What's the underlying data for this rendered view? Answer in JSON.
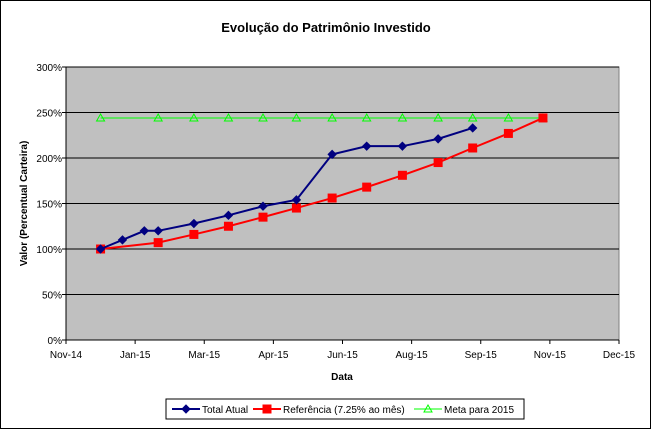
{
  "chart_data": {
    "type": "line",
    "title": "Evolução do Patrimônio Investido",
    "xlabel": "Data",
    "ylabel": "Valor (Percentual Carteira)",
    "ylim": [
      0,
      300
    ],
    "y_ticks": [
      "0%",
      "50%",
      "100%",
      "150%",
      "200%",
      "250%",
      "300%"
    ],
    "x_ticks": [
      "Nov-14",
      "Jan-15",
      "Mar-15",
      "Apr-15",
      "Jun-15",
      "Aug-15",
      "Sep-15",
      "Nov-15",
      "Dec-15"
    ],
    "x_tick_values": [
      "2014-11-01",
      "2014-12-31",
      "2015-03-01",
      "2015-04-30",
      "2015-06-29",
      "2015-08-28",
      "2015-10-27",
      "2015-12-26",
      "2016-02-24"
    ],
    "xlim": [
      "2014-11-01",
      "2016-02-24"
    ],
    "grid": "horizontal",
    "plot_background": "#c0c0c0",
    "legend_position": "bottom",
    "series": [
      {
        "name": "Total Atual",
        "color": "#000080",
        "marker": "diamond",
        "x": [
          "2014-12-01",
          "2014-12-20",
          "2015-01-08",
          "2015-01-20",
          "2015-02-20",
          "2015-03-22",
          "2015-04-21",
          "2015-05-20",
          "2015-06-20",
          "2015-07-20",
          "2015-08-20",
          "2015-09-20",
          "2015-10-20"
        ],
        "y": [
          100,
          110,
          120,
          120,
          128,
          137,
          147,
          154,
          204,
          213,
          213,
          221,
          233
        ]
      },
      {
        "name": "Referência (7.25% ao mês)",
        "color": "#ff0000",
        "marker": "square",
        "x": [
          "2014-12-01",
          "2015-01-20",
          "2015-02-20",
          "2015-03-22",
          "2015-04-21",
          "2015-05-20",
          "2015-06-20",
          "2015-07-20",
          "2015-08-20",
          "2015-09-20",
          "2015-10-20",
          "2015-11-20",
          "2015-12-20"
        ],
        "y": [
          100,
          107,
          116,
          125,
          135,
          145,
          156,
          168,
          181,
          195,
          211,
          227,
          244
        ]
      },
      {
        "name": "Meta para 2015",
        "color": "#00ff00",
        "marker": "triangle",
        "x": [
          "2014-12-01",
          "2015-01-20",
          "2015-02-20",
          "2015-03-22",
          "2015-04-21",
          "2015-05-20",
          "2015-06-20",
          "2015-07-20",
          "2015-08-20",
          "2015-09-20",
          "2015-10-20",
          "2015-11-20",
          "2015-12-20"
        ],
        "y": [
          244,
          244,
          244,
          244,
          244,
          244,
          244,
          244,
          244,
          244,
          244,
          244,
          244
        ]
      }
    ]
  }
}
